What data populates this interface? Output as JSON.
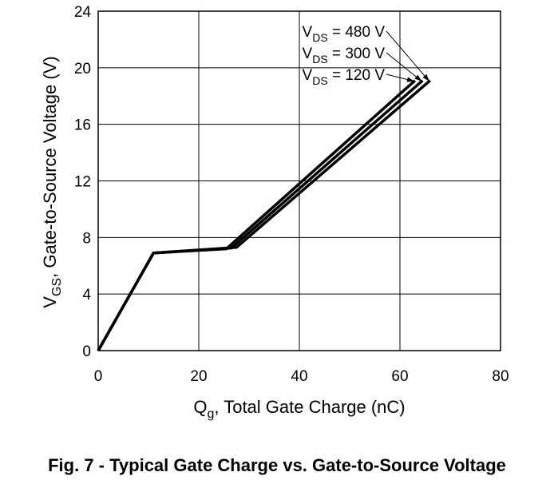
{
  "chart_data": {
    "type": "line",
    "title": "Fig. 7 - Typical Gate Charge vs. Gate-to-Source Voltage",
    "xlabel": {
      "main": "Q",
      "sub": "g",
      "rest": ", Total Gate Charge (nC)"
    },
    "ylabel": {
      "main": "V",
      "sub": "GS",
      "rest": ", Gate-to-Source Voltage (V)"
    },
    "xlim": [
      0,
      80
    ],
    "ylim": [
      0,
      24
    ],
    "xticks": [
      0,
      20,
      40,
      60,
      80
    ],
    "yticks": [
      0,
      4,
      8,
      12,
      16,
      20,
      24
    ],
    "grid": true,
    "series": [
      {
        "name": "480 V",
        "label": {
          "main": "V",
          "sub": "DS",
          "rest": " = 480 V"
        },
        "points": [
          [
            0,
            0
          ],
          [
            11,
            6.9
          ],
          [
            27.5,
            7.3
          ],
          [
            66,
            19.1
          ]
        ]
      },
      {
        "name": "300 V",
        "label": {
          "main": "V",
          "sub": "DS",
          "rest": " = 300 V"
        },
        "points": [
          [
            0,
            0
          ],
          [
            11,
            6.9
          ],
          [
            26.5,
            7.25
          ],
          [
            64.5,
            19.1
          ]
        ]
      },
      {
        "name": "120 V",
        "label": {
          "main": "V",
          "sub": "DS",
          "rest": " = 120 V"
        },
        "points": [
          [
            0,
            0
          ],
          [
            11,
            6.9
          ],
          [
            25.5,
            7.2
          ],
          [
            63,
            19.1
          ]
        ]
      }
    ]
  }
}
